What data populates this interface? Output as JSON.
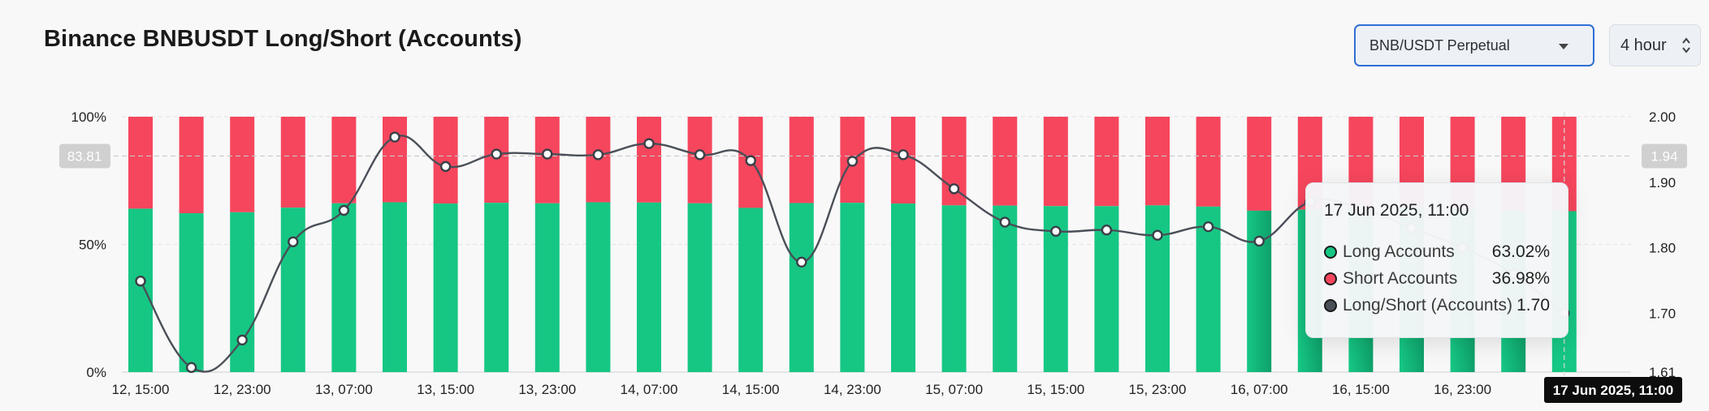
{
  "header": {
    "title": "Binance BNBUSDT Long/Short (Accounts)",
    "symbol_select": "BNB/USDT Perpetual",
    "interval_select": "4 hour"
  },
  "colors": {
    "long": "#16c784",
    "long_dark": "#0fa06a",
    "short": "#f6465d",
    "ratio_line": "#4a4f58",
    "axis_text": "#222222"
  },
  "chart_data": {
    "type": "bar",
    "x_tick_labels": [
      "12, 15:00",
      "12, 23:00",
      "13, 07:00",
      "13, 15:00",
      "13, 23:00",
      "14, 07:00",
      "14, 15:00",
      "14, 23:00",
      "15, 07:00",
      "15, 15:00",
      "15, 23:00",
      "16, 07:00",
      "16, 15:00",
      "16, 23:00"
    ],
    "left_axis": {
      "ticks": [
        "100%",
        "50%",
        "0%"
      ],
      "ylim": [
        0,
        100
      ]
    },
    "right_axis": {
      "ticks": [
        "2.00",
        "1.90",
        "1.80",
        "1.70",
        "1.61"
      ],
      "ylim": [
        1.61,
        2.0
      ]
    },
    "series": [
      {
        "name": "Long Accounts",
        "axis": "left",
        "values": [
          64.0,
          62.2,
          62.6,
          64.4,
          66.1,
          66.5,
          66.0,
          66.3,
          66.1,
          66.5,
          66.4,
          66.1,
          64.3,
          66.2,
          66.3,
          66.0,
          65.3,
          65.2,
          65.0,
          65.0,
          65.3,
          64.8,
          63.2,
          63.6,
          64.0,
          64.5,
          63.9,
          63.1,
          63.02
        ]
      },
      {
        "name": "Short Accounts",
        "axis": "left",
        "values": [
          36.0,
          37.8,
          37.4,
          35.6,
          33.9,
          33.5,
          34.0,
          33.7,
          33.9,
          33.5,
          33.6,
          33.9,
          35.7,
          33.8,
          33.7,
          34.0,
          34.7,
          34.8,
          35.0,
          35.0,
          34.7,
          35.2,
          36.8,
          36.4,
          36.0,
          35.5,
          36.1,
          36.9,
          36.98
        ]
      },
      {
        "name": "Long/Short (Accounts)",
        "axis": "right",
        "values": [
          1.749,
          1.617,
          1.659,
          1.809,
          1.857,
          1.969,
          1.924,
          1.943,
          1.943,
          1.942,
          1.959,
          1.942,
          1.933,
          1.778,
          1.932,
          1.942,
          1.89,
          1.839,
          1.825,
          1.827,
          1.819,
          1.832,
          1.81,
          1.87,
          1.86,
          1.83,
          1.8,
          1.76,
          1.7
        ]
      }
    ],
    "crosshair": {
      "left_value_label": "83.81",
      "right_value_label": "1.94",
      "x_label": "17 Jun 2025, 11:00"
    },
    "grid": true,
    "legend": "none"
  },
  "tooltip": {
    "date": "17 Jun 2025, 11:00",
    "rows": [
      {
        "label": "Long Accounts",
        "value": "63.02%",
        "color": "#16c784"
      },
      {
        "label": "Short Accounts",
        "value": "36.98%",
        "color": "#f6465d"
      },
      {
        "label": "Long/Short (Accounts)",
        "value": "1.70",
        "color": "#4a4f58"
      }
    ]
  }
}
